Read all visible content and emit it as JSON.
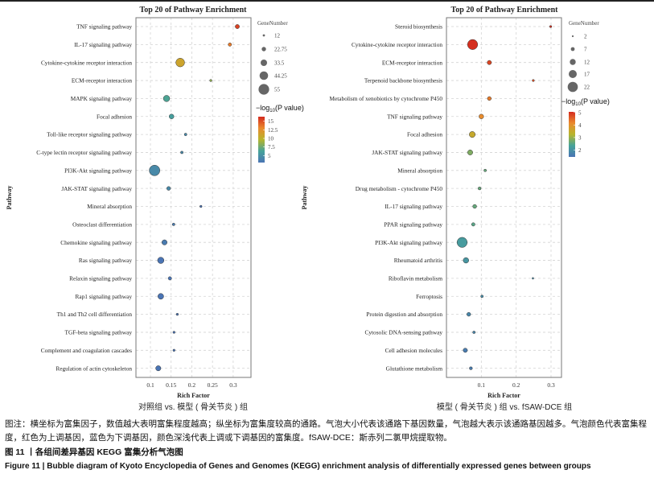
{
  "caption": {
    "note": "图注：横坐标为富集因子，数值越大表明富集程度越高；纵坐标为富集度较高的通路。气泡大小代表该通路下基因数量，气泡越大表示该通路基因越多。气泡颜色代表富集程度，红色为上调基因，蓝色为下调基因，颜色深浅代表上调或下调基因的富集度。fSAW-DCE：斯赤列二氯甲烷提取物。",
    "figure_cn": "图 11 丨各组间差异基因 KEGG 富集分析气泡图",
    "figure_en": "Figure 11  |  Bubble diagram of Kyoto Encyclopedia of Genes and Genomes (KEGG) enrichment analysis of differentially expressed genes between groups"
  },
  "colors": {
    "low": "#4a74b4",
    "mid_low": "#46a39a",
    "mid": "#b7b52c",
    "mid_high": "#ea8a2e",
    "high": "#d42a1e"
  },
  "chart_data": [
    {
      "type": "scatter",
      "title": "Top 20 of Pathway Enrichment",
      "subtitle": "对照组 vs. 模型 ( 骨关节炎 ) 组",
      "xlabel": "Rich Factor",
      "ylabel": "Pathway",
      "xlim": [
        0.065,
        0.343
      ],
      "xticks": [
        0.1,
        0.15,
        0.2,
        0.25,
        0.3
      ],
      "xtick_labels": [
        "0.1",
        "0.15",
        "0.2",
        "0.25",
        "0.3"
      ],
      "grid": true,
      "size_legend": {
        "title": "GeneNumber",
        "values": [
          12,
          22.75,
          33.5,
          44.25,
          55
        ],
        "labels": [
          "12",
          "22.75",
          "33.5",
          "44.25",
          "55"
        ]
      },
      "color_legend": {
        "title_prefix": "−log",
        "title_sub": "10",
        "title_suffix": "(P value)",
        "range": [
          3,
          16.3
        ],
        "ticks": [
          15,
          12.5,
          10,
          7.5,
          5
        ],
        "tick_labels": [
          "15",
          "12.5",
          "10",
          "7.5",
          "5"
        ]
      },
      "pathways": [
        "TNF signaling pathway",
        "IL-17 signaling pathway",
        "Cytokine-cytokine receptor interaction",
        "ECM-receptor interaction",
        "MAPK signaling pathway",
        "Focal adhesion",
        "Toll-like receptor signaling pathway",
        "C-type lectin receptor signaling pathway",
        "PI3K-Akt signaling pathway",
        "JAK-STAT signaling pathway",
        "Mineral absorption",
        "Osteoclast differentiation",
        "Chemokine signaling pathway",
        "Ras signaling pathway",
        "Relaxin signaling pathway",
        "Rap1 signaling pathway",
        "Th1 and Th2 cell differentiation",
        "TGF-beta signaling pathway",
        "Complement and coagulation cascades",
        "Regulation of actin cytoskeleton"
      ],
      "rich_factor": [
        0.31,
        0.292,
        0.172,
        0.246,
        0.139,
        0.151,
        0.185,
        0.176,
        0.11,
        0.144,
        0.222,
        0.156,
        0.134,
        0.125,
        0.147,
        0.125,
        0.165,
        0.157,
        0.157,
        0.119
      ],
      "gene_number": [
        22,
        18,
        45,
        12,
        33,
        25,
        14,
        14,
        55,
        20,
        12,
        14,
        27,
        33,
        18,
        30,
        12,
        12,
        12,
        27
      ],
      "neg_log10_p": [
        15.5,
        13.5,
        11,
        8.5,
        6.5,
        6,
        4.5,
        4.5,
        4.5,
        4.5,
        3,
        3.5,
        3.5,
        3,
        3,
        3,
        3,
        3,
        3,
        3
      ]
    },
    {
      "type": "scatter",
      "title": "Top 20 of Pathway Enrichment",
      "subtitle": "模型 ( 骨关节炎 ) 组 vs. fSAW-DCE 组",
      "xlabel": "Rich Factor",
      "ylabel": "Pathway",
      "xlim": [
        0.0,
        0.33
      ],
      "xticks": [
        0.1,
        0.2,
        0.3
      ],
      "xtick_labels": [
        "0.1",
        "0.2",
        "0.3"
      ],
      "grid": true,
      "size_legend": {
        "title": "GeneNumber",
        "values": [
          2,
          7,
          12,
          17,
          22
        ],
        "labels": [
          "2",
          "7",
          "12",
          "17",
          "22"
        ]
      },
      "color_legend": {
        "title_prefix": "−log",
        "title_sub": "10",
        "title_suffix": "(P value)",
        "range": [
          1.45,
          5.05
        ],
        "ticks": [
          5,
          4,
          3,
          2
        ],
        "tick_labels": [
          "5",
          "4",
          "3",
          "2"
        ]
      },
      "pathways": [
        "Steroid biosynthesis",
        "Cytokine-cytokine receptor interaction",
        "ECM-receptor interaction",
        "Terpenoid backbone biosynthesis",
        "Metabolism of xenobiotics by cytochrome P450",
        "TNF signaling pathway",
        "Focal adhesion",
        "JAK-STAT signaling pathway",
        "Mineral absorption",
        "Drug metabolism - cytochrome P450",
        "IL-17 signaling pathway",
        "PPAR signaling pathway",
        "PI3K-Akt signaling pathway",
        "Rheumatoid arthritis",
        "Riboflavin metabolism",
        "Ferroptosis",
        "Protein digestion and absorption",
        "Cytosolic DNA-sensing pathway",
        "Cell adhesion molecules",
        "Glutathione metabolism"
      ],
      "rich_factor": [
        0.299,
        0.075,
        0.123,
        0.249,
        0.123,
        0.1,
        0.074,
        0.068,
        0.111,
        0.095,
        0.081,
        0.077,
        0.045,
        0.056,
        0.248,
        0.102,
        0.064,
        0.079,
        0.054,
        0.07
      ],
      "gene_number": [
        3,
        22,
        8,
        3,
        7,
        9,
        12,
        10,
        4,
        5,
        7,
        6,
        22,
        11,
        2,
        4,
        7,
        4,
        8,
        5
      ],
      "neg_log10_p": [
        5,
        5,
        4.8,
        4.7,
        4.3,
        4.1,
        3.5,
        2.8,
        2.6,
        2.6,
        2.6,
        2.5,
        2.2,
        2.1,
        1.9,
        1.9,
        1.8,
        1.8,
        1.6,
        1.6
      ]
    }
  ]
}
